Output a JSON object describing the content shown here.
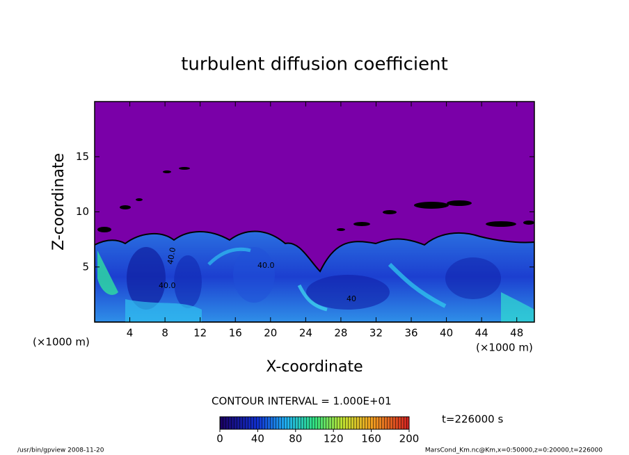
{
  "chart_data": {
    "type": "contour",
    "title": "turbulent diffusion coefficient",
    "xlabel": "X-coordinate",
    "ylabel": "Z-coordinate",
    "x_unit": "(×1000 m)",
    "xlim": [
      0,
      50
    ],
    "xticks": [
      4,
      8,
      12,
      16,
      20,
      24,
      28,
      32,
      36,
      40,
      44,
      48
    ],
    "ylim": [
      0,
      20
    ],
    "yticks": [
      5,
      10,
      15
    ],
    "contour_interval": "CONTOUR INTERVAL = 1.000E+01",
    "time_label": "t=226000 s",
    "contour_labels": [
      "40.0",
      "40.0",
      "40.0",
      "40"
    ],
    "colorbar": {
      "clim": [
        0,
        200
      ],
      "ticks": [
        0,
        40,
        80,
        120,
        160,
        200
      ]
    },
    "footer_left": "/usr/bin/gpview   2008-11-20",
    "footer_right": "MarsCond_Km.nc@Km,x=0:50000,z=0:20000,t=226000"
  }
}
